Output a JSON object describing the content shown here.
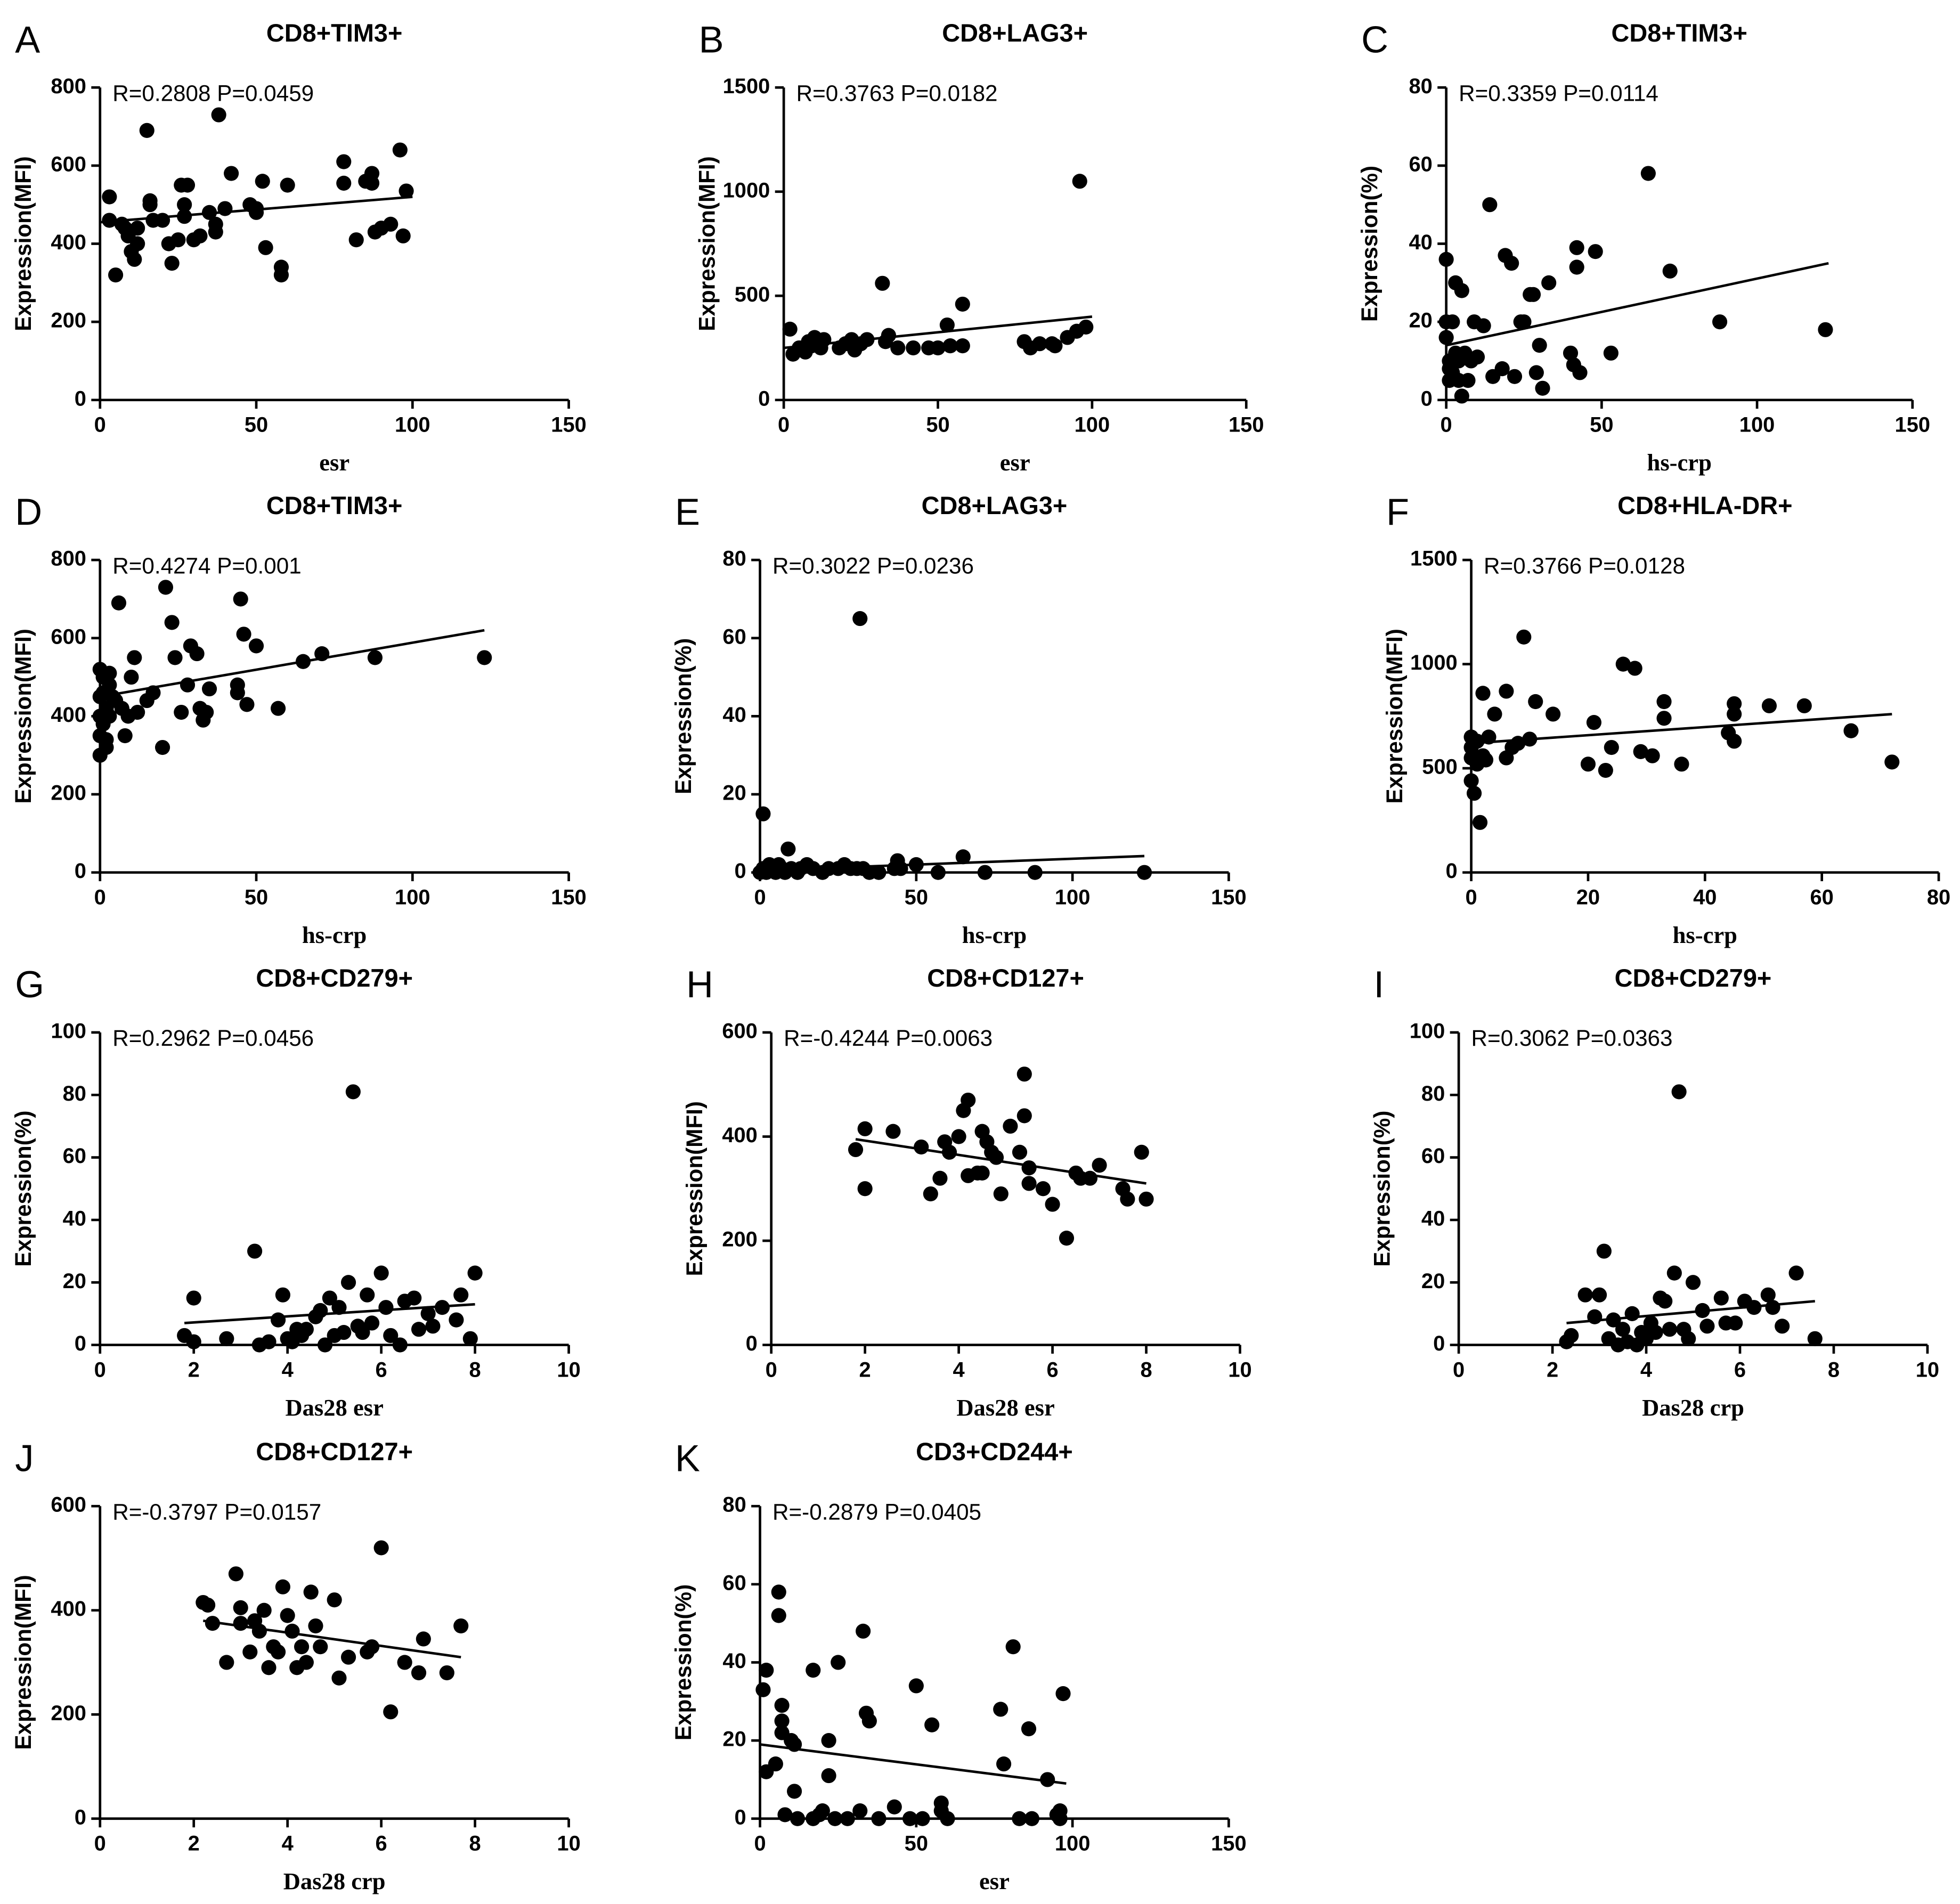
{
  "chart_data": [
    {
      "type": "scatter",
      "panel": "A",
      "title": "CD8+TIM3+",
      "annotation": "R=0.2808  P=0.0459",
      "xlabel": "esr",
      "ylabel": "Expression(MFI)",
      "color": "#000000",
      "x": [
        3,
        3,
        5,
        7,
        8,
        9,
        10,
        11,
        12,
        12,
        15,
        16,
        16,
        17,
        20,
        22,
        23,
        25,
        26,
        27,
        27,
        28,
        30,
        32,
        35,
        37,
        37,
        38,
        40,
        42,
        48,
        50,
        50,
        52,
        53,
        58,
        58,
        60,
        78,
        78,
        82,
        85,
        87,
        87,
        88,
        90,
        93,
        96,
        97,
        98
      ],
      "values": [
        520,
        460,
        320,
        450,
        440,
        420,
        380,
        360,
        400,
        440,
        690,
        500,
        510,
        460,
        460,
        400,
        350,
        410,
        550,
        470,
        500,
        550,
        410,
        420,
        480,
        430,
        450,
        730,
        490,
        580,
        500,
        480,
        490,
        560,
        390,
        340,
        320,
        550,
        610,
        555,
        410,
        560,
        580,
        555,
        430,
        440,
        450,
        640,
        420,
        535
      ],
      "fit": {
        "x": [
          0,
          100
        ],
        "y": [
          455,
          520
        ]
      },
      "xlim": [
        0,
        150
      ],
      "ylim": [
        0,
        800
      ],
      "xticks": [
        0,
        50,
        100,
        150
      ],
      "yticks": [
        0,
        200,
        400,
        600,
        800
      ]
    },
    {
      "type": "scatter",
      "panel": "B",
      "title": "CD8+LAG3+",
      "annotation": "R=0.3763  P=0.0182",
      "xlabel": "esr",
      "ylabel": "Expression(MFI)",
      "color": "#000000",
      "x": [
        2,
        3,
        5,
        7,
        8,
        9,
        10,
        12,
        13,
        18,
        20,
        22,
        23,
        25,
        27,
        32,
        33,
        34,
        37,
        42,
        47,
        50,
        53,
        54,
        58,
        58,
        78,
        80,
        83,
        87,
        88,
        92,
        95,
        96,
        98
      ],
      "values": [
        340,
        220,
        250,
        230,
        280,
        260,
        300,
        250,
        290,
        250,
        270,
        290,
        240,
        270,
        290,
        560,
        280,
        310,
        250,
        250,
        250,
        250,
        360,
        260,
        460,
        260,
        280,
        250,
        270,
        270,
        260,
        300,
        330,
        1050,
        350
      ],
      "fit": {
        "x": [
          0,
          100
        ],
        "y": [
          250,
          400
        ]
      },
      "xlim": [
        0,
        150
      ],
      "ylim": [
        0,
        1500
      ],
      "xticks": [
        0,
        50,
        100,
        150
      ],
      "yticks": [
        0,
        500,
        1000,
        1500
      ]
    },
    {
      "type": "scatter",
      "panel": "C",
      "title": "CD8+TIM3+",
      "annotation": "R=0.3359  P=0.0114",
      "xlabel": "hs-crp",
      "ylabel": "Expression(%)",
      "color": "#000000",
      "x": [
        0,
        0,
        0,
        1,
        1,
        1,
        2,
        2,
        3,
        3,
        4,
        4,
        5,
        5,
        6,
        7,
        8,
        9,
        10,
        12,
        14,
        15,
        18,
        19,
        21,
        22,
        24,
        25,
        27,
        28,
        29,
        30,
        31,
        33,
        40,
        41,
        42,
        42,
        43,
        48,
        53,
        65,
        72,
        88,
        122
      ],
      "values": [
        36,
        20,
        16,
        10,
        8,
        5,
        7,
        20,
        30,
        12,
        5,
        10,
        1,
        28,
        12,
        5,
        10,
        20,
        11,
        19,
        50,
        6,
        8,
        37,
        35,
        6,
        20,
        20,
        27,
        27,
        7,
        14,
        3,
        30,
        12,
        9,
        39,
        34,
        7,
        38,
        12,
        58,
        33,
        20,
        18
      ],
      "fit": {
        "x": [
          0,
          123
        ],
        "y": [
          14,
          35
        ]
      },
      "xlim": [
        0,
        150
      ],
      "ylim": [
        0,
        80
      ],
      "xticks": [
        0,
        50,
        100,
        150
      ],
      "yticks": [
        0,
        20,
        40,
        60,
        80
      ]
    },
    {
      "type": "scatter",
      "panel": "D",
      "title": "CD8+TIM3+",
      "annotation": "R=0.4274  P=0.001",
      "xlabel": "hs-crp",
      "ylabel": "Expression(MFI)",
      "color": "#000000",
      "x": [
        0,
        0,
        0,
        0,
        0,
        1,
        1,
        1,
        2,
        2,
        2,
        2,
        3,
        3,
        3,
        4,
        5,
        6,
        7,
        8,
        9,
        10,
        11,
        12,
        15,
        17,
        20,
        21,
        23,
        24,
        26,
        28,
        29,
        31,
        32,
        33,
        34,
        35,
        44,
        44,
        45,
        46,
        47,
        50,
        57,
        65,
        71,
        88,
        123
      ],
      "values": [
        300,
        350,
        400,
        450,
        520,
        380,
        460,
        500,
        340,
        320,
        420,
        460,
        400,
        480,
        510,
        450,
        440,
        690,
        420,
        350,
        400,
        500,
        550,
        410,
        440,
        460,
        320,
        730,
        640,
        550,
        410,
        480,
        580,
        560,
        420,
        390,
        410,
        470,
        480,
        460,
        700,
        610,
        430,
        580,
        420,
        540,
        560,
        550,
        550
      ],
      "fit": {
        "x": [
          0,
          123
        ],
        "y": [
          450,
          620
        ]
      },
      "xlim": [
        0,
        150
      ],
      "ylim": [
        0,
        800
      ],
      "xticks": [
        0,
        50,
        100,
        150
      ],
      "yticks": [
        0,
        200,
        400,
        600,
        800
      ]
    },
    {
      "type": "scatter",
      "panel": "E",
      "title": "CD8+LAG3+",
      "annotation": "R=0.3022  P=0.0236",
      "xlabel": "hs-crp",
      "ylabel": "Expression(%)",
      "color": "#000000",
      "x": [
        0,
        1,
        1,
        2,
        3,
        4,
        5,
        6,
        7,
        8,
        9,
        10,
        12,
        13,
        15,
        17,
        20,
        22,
        25,
        27,
        29,
        31,
        32,
        33,
        35,
        38,
        43,
        44,
        45,
        50,
        57,
        65,
        72,
        88,
        123
      ],
      "values": [
        0,
        1,
        15,
        0,
        2,
        1,
        0,
        2,
        1,
        0,
        6,
        1,
        0,
        1,
        2,
        1,
        0,
        1,
        1,
        2,
        1,
        1,
        65,
        1,
        0,
        0,
        1,
        3,
        1,
        2,
        0,
        4,
        0,
        0,
        0
      ],
      "fit": {
        "x": [
          0,
          123
        ],
        "y": [
          0.5,
          4.2
        ]
      },
      "xlim": [
        0,
        150
      ],
      "ylim": [
        0,
        80
      ],
      "xticks": [
        0,
        50,
        100,
        150
      ],
      "yticks": [
        0,
        20,
        40,
        60,
        80
      ]
    },
    {
      "type": "scatter",
      "panel": "F",
      "title": "CD8+HLA-DR+",
      "annotation": "R=0.3766  P=0.0128",
      "xlabel": "hs-crp",
      "ylabel": "Expression(MFI)",
      "color": "#000000",
      "x": [
        0,
        0,
        0,
        0,
        0.5,
        1,
        1,
        1.5,
        2,
        2,
        2.5,
        3,
        4,
        6,
        6,
        7,
        8,
        9,
        10,
        11,
        14,
        20,
        21,
        23,
        24,
        26,
        28,
        29,
        31,
        33,
        33,
        36,
        44,
        45,
        45,
        45,
        51,
        57,
        65,
        72
      ],
      "values": [
        650,
        600,
        550,
        440,
        380,
        520,
        630,
        240,
        860,
        560,
        540,
        650,
        760,
        870,
        550,
        600,
        620,
        1130,
        640,
        820,
        760,
        520,
        720,
        490,
        600,
        1000,
        980,
        580,
        560,
        820,
        740,
        520,
        670,
        810,
        760,
        630,
        800,
        800,
        680,
        530
      ],
      "fit": {
        "x": [
          0,
          72
        ],
        "y": [
          620,
          760
        ]
      },
      "xlim": [
        0,
        80
      ],
      "ylim": [
        0,
        1500
      ],
      "xticks": [
        0,
        20,
        40,
        60,
        80
      ],
      "yticks": [
        0,
        500,
        1000,
        1500
      ]
    },
    {
      "type": "scatter",
      "panel": "G",
      "title": "CD8+CD279+",
      "annotation": "R=0.2962  P=0.0456",
      "xlabel": "Das28 esr",
      "ylabel": "Expression(%)",
      "color": "#000000",
      "x": [
        1.8,
        2,
        2,
        2.7,
        3.3,
        3.4,
        3.6,
        3.8,
        3.9,
        4,
        4.1,
        4.2,
        4.3,
        4.4,
        4.6,
        4.7,
        4.8,
        4.9,
        5,
        5.1,
        5.2,
        5.3,
        5.4,
        5.5,
        5.6,
        5.7,
        5.8,
        6,
        6.1,
        6.2,
        6.4,
        6.5,
        6.7,
        6.8,
        7,
        7.1,
        7.3,
        7.6,
        7.7,
        7.9,
        8
      ],
      "values": [
        3,
        15,
        1,
        2,
        30,
        0,
        1,
        8,
        16,
        2,
        1,
        5,
        3,
        5,
        9,
        11,
        0,
        15,
        3,
        12,
        4,
        20,
        81,
        6,
        4,
        16,
        7,
        23,
        12,
        3,
        0,
        14,
        15,
        5,
        10,
        6,
        12,
        8,
        16,
        2,
        23
      ],
      "fit": {
        "x": [
          1.8,
          8
        ],
        "y": [
          7,
          13
        ]
      },
      "xlim": [
        0,
        10
      ],
      "ylim": [
        0,
        100
      ],
      "xticks": [
        0,
        2,
        4,
        6,
        8,
        10
      ],
      "yticks": [
        0,
        20,
        40,
        60,
        80,
        100
      ]
    },
    {
      "type": "scatter",
      "panel": "H",
      "title": "CD8+CD127+",
      "annotation": "R=-0.4244  P=0.0063",
      "xlabel": "Das28 esr",
      "ylabel": "Expression(MFI)",
      "color": "#000000",
      "x": [
        1.8,
        2,
        2,
        2.6,
        3.2,
        3.4,
        3.6,
        3.7,
        3.8,
        4,
        4.1,
        4.2,
        4.2,
        4.4,
        4.5,
        4.5,
        4.6,
        4.7,
        4.8,
        4.9,
        5.1,
        5.3,
        5.4,
        5.4,
        5.5,
        5.5,
        5.8,
        6,
        6.3,
        6.5,
        6.6,
        6.8,
        7,
        7.5,
        7.6,
        7.9,
        8
      ],
      "values": [
        375,
        415,
        300,
        410,
        380,
        290,
        320,
        390,
        370,
        400,
        450,
        470,
        325,
        330,
        410,
        330,
        390,
        370,
        360,
        290,
        420,
        370,
        440,
        520,
        310,
        340,
        300,
        270,
        205,
        330,
        320,
        320,
        345,
        300,
        280,
        370,
        280
      ],
      "fit": {
        "x": [
          1.8,
          8
        ],
        "y": [
          395,
          310
        ]
      },
      "xlim": [
        0,
        10
      ],
      "ylim": [
        0,
        600
      ],
      "xticks": [
        0,
        2,
        4,
        6,
        8,
        10
      ],
      "yticks": [
        0,
        200,
        400,
        600
      ]
    },
    {
      "type": "scatter",
      "panel": "I",
      "title": "CD8+CD279+",
      "annotation": "R=0.3062  P=0.0363",
      "xlabel": "Das28 crp",
      "ylabel": "Expression(%)",
      "color": "#000000",
      "x": [
        2.3,
        2.4,
        2.7,
        2.9,
        3,
        3.1,
        3.2,
        3.3,
        3.4,
        3.5,
        3.6,
        3.7,
        3.8,
        3.9,
        4,
        4.1,
        4.2,
        4.3,
        4.4,
        4.5,
        4.6,
        4.7,
        4.8,
        4.9,
        5,
        5.2,
        5.3,
        5.6,
        5.7,
        5.9,
        6.1,
        6.3,
        6.6,
        6.7,
        6.9,
        7.2,
        7.6
      ],
      "values": [
        1,
        3,
        16,
        9,
        16,
        30,
        2,
        8,
        0,
        5,
        1,
        10,
        0,
        4,
        2,
        7,
        4,
        15,
        14,
        5,
        23,
        81,
        5,
        2,
        20,
        11,
        6,
        15,
        7,
        7,
        14,
        12,
        16,
        12,
        6,
        23,
        2
      ],
      "fit": {
        "x": [
          2.3,
          7.6
        ],
        "y": [
          7,
          14
        ]
      },
      "xlim": [
        0,
        10
      ],
      "ylim": [
        0,
        100
      ],
      "xticks": [
        0,
        2,
        4,
        6,
        8,
        10
      ],
      "yticks": [
        0,
        20,
        40,
        60,
        80,
        100
      ]
    },
    {
      "type": "scatter",
      "panel": "J",
      "title": "CD8+CD127+",
      "annotation": "R=-0.3797  P=0.0157",
      "xlabel": "Das28 crp",
      "ylabel": "Expression(MFI)",
      "color": "#000000",
      "x": [
        2.2,
        2.3,
        2.4,
        2.7,
        2.9,
        3,
        3,
        3.2,
        3.3,
        3.4,
        3.5,
        3.6,
        3.7,
        3.8,
        3.9,
        4,
        4.1,
        4.2,
        4.3,
        4.4,
        4.5,
        4.6,
        4.7,
        5,
        5.1,
        5.3,
        5.7,
        5.8,
        6,
        6.2,
        6.5,
        6.8,
        6.9,
        7.4,
        7.7
      ],
      "values": [
        415,
        410,
        375,
        300,
        470,
        405,
        375,
        320,
        380,
        360,
        400,
        290,
        330,
        320,
        445,
        390,
        360,
        290,
        330,
        300,
        435,
        370,
        330,
        420,
        270,
        310,
        320,
        330,
        520,
        205,
        300,
        280,
        345,
        280,
        370
      ],
      "fit": {
        "x": [
          2.2,
          7.7
        ],
        "y": [
          380,
          310
        ]
      },
      "xlim": [
        0,
        10
      ],
      "ylim": [
        0,
        600
      ],
      "xticks": [
        0,
        2,
        4,
        6,
        8,
        10
      ],
      "yticks": [
        0,
        200,
        400,
        600
      ]
    },
    {
      "type": "scatter",
      "panel": "K",
      "title": "CD3+CD244+",
      "annotation": "R=-0.2879  P=0.0405",
      "xlabel": "esr",
      "ylabel": "Expression(%)",
      "color": "#000000",
      "x": [
        1,
        2,
        2,
        5,
        6,
        6,
        7,
        7,
        7,
        8,
        10,
        11,
        11,
        12,
        17,
        17,
        19,
        20,
        22,
        22,
        24,
        25,
        28,
        32,
        33,
        34,
        35,
        38,
        43,
        48,
        50,
        52,
        55,
        58,
        58,
        60,
        77,
        78,
        81,
        83,
        86,
        87,
        92,
        95,
        96,
        97,
        96
      ],
      "values": [
        33,
        38,
        12,
        14,
        58,
        52,
        29,
        25,
        22,
        1,
        20,
        19,
        7,
        0,
        0,
        38,
        1,
        2,
        11,
        20,
        0,
        40,
        0,
        2,
        48,
        27,
        25,
        0,
        3,
        0,
        34,
        0,
        24,
        2,
        4,
        0,
        28,
        14,
        44,
        0,
        23,
        0,
        10,
        1,
        2,
        32,
        0
      ],
      "fit": {
        "x": [
          0,
          98
        ],
        "y": [
          19,
          9
        ]
      },
      "xlim": [
        0,
        150
      ],
      "ylim": [
        0,
        80
      ],
      "xticks": [
        0,
        50,
        100,
        150
      ],
      "yticks": [
        0,
        20,
        40,
        60,
        80
      ]
    }
  ]
}
